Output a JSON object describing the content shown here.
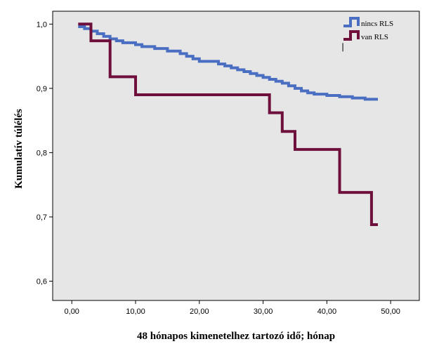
{
  "chart_data": {
    "type": "line",
    "title": "",
    "xlabel": "48 hónapos kimenetelhez tartozó idő; hónap",
    "ylabel": "Kumulatív túlélés",
    "xlim": [
      -3,
      54.5
    ],
    "ylim": [
      0.57,
      1.02
    ],
    "x_ticks": [
      0,
      10,
      20,
      30,
      40,
      50
    ],
    "x_tick_labels": [
      "0,00",
      "10,00",
      "20,00",
      "30,00",
      "40,00",
      "50,00"
    ],
    "y_ticks": [
      0.6,
      0.7,
      0.8,
      0.9,
      1.0
    ],
    "y_tick_labels": [
      "0,6",
      "0,7",
      "0,8",
      "0,9",
      "1,0"
    ],
    "grid": false,
    "background_color": "#e6e6e6",
    "legend_position": "top-right",
    "series": [
      {
        "name": "nincs RLS",
        "color": "#4a6fc2",
        "x": [
          1,
          2,
          3,
          4,
          5,
          6,
          7,
          8,
          10,
          11,
          13,
          15,
          17,
          18,
          19,
          20,
          23,
          24,
          25,
          26,
          27,
          28,
          29,
          30,
          31,
          32,
          33,
          34,
          35,
          36,
          37,
          38,
          40,
          42,
          44,
          46,
          48
        ],
        "y": [
          0.996,
          0.993,
          0.989,
          0.985,
          0.981,
          0.977,
          0.974,
          0.971,
          0.968,
          0.965,
          0.962,
          0.958,
          0.954,
          0.95,
          0.946,
          0.942,
          0.938,
          0.935,
          0.932,
          0.929,
          0.926,
          0.923,
          0.92,
          0.917,
          0.914,
          0.911,
          0.908,
          0.904,
          0.9,
          0.896,
          0.893,
          0.891,
          0.889,
          0.887,
          0.885,
          0.883,
          0.883
        ]
      },
      {
        "name": "van RLS",
        "color": "#6e0f3c",
        "x": [
          1,
          3,
          6,
          10,
          31,
          33,
          35,
          42,
          47,
          48
        ],
        "y": [
          1.0,
          0.974,
          0.918,
          0.89,
          0.862,
          0.833,
          0.805,
          0.738,
          0.688,
          0.688
        ]
      }
    ],
    "censor_marks": [
      {
        "series": 0,
        "x": 42.5,
        "y": 0.964
      }
    ]
  }
}
